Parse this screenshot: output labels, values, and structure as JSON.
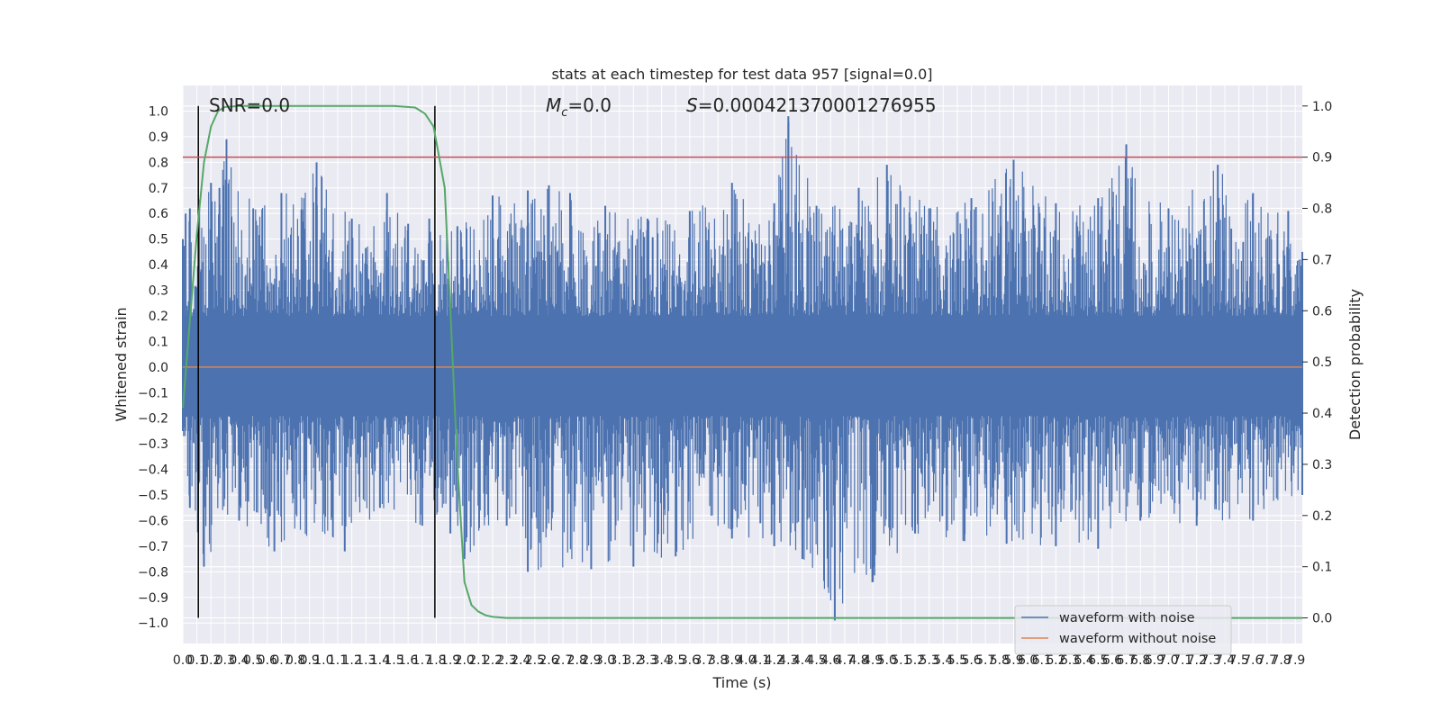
{
  "chart_data": {
    "type": "line",
    "title": "stats at each timestep for test data 957 [signal=0.0]",
    "xlabel": "Time (s)",
    "ylabel": "Whitened strain",
    "ylabel_right": "Detection probability",
    "xlim": [
      0.0,
      7.95
    ],
    "ylim": [
      -1.08,
      1.1
    ],
    "ylim_right": [
      -0.05,
      1.04
    ],
    "x_ticks": [
      "0.0",
      "0.1",
      "0.2",
      "0.3",
      "0.4",
      "0.5",
      "0.6",
      "0.7",
      "0.8",
      "0.9",
      "1.0",
      "1.1",
      "1.2",
      "1.3",
      "1.4",
      "1.5",
      "1.6",
      "1.7",
      "1.8",
      "1.9",
      "2.0",
      "2.1",
      "2.2",
      "2.3",
      "2.4",
      "2.5",
      "2.6",
      "2.7",
      "2.8",
      "2.9",
      "3.0",
      "3.1",
      "3.2",
      "3.3",
      "3.4",
      "3.5",
      "3.6",
      "3.7",
      "3.8",
      "3.9",
      "4.0",
      "4.1",
      "4.2",
      "4.3",
      "4.4",
      "4.5",
      "4.6",
      "4.7",
      "4.8",
      "4.9",
      "5.0",
      "5.1",
      "5.2",
      "5.3",
      "5.4",
      "5.5",
      "5.6",
      "5.7",
      "5.8",
      "5.9",
      "6.0",
      "6.1",
      "6.2",
      "6.3",
      "6.4",
      "6.5",
      "6.6",
      "6.7",
      "6.8",
      "6.9",
      "7.0",
      "7.1",
      "7.2",
      "7.3",
      "7.4",
      "7.5",
      "7.6",
      "7.7",
      "7.8",
      "7.9"
    ],
    "y_ticks_left": [
      "1.0",
      "0.9",
      "0.8",
      "0.7",
      "0.6",
      "0.5",
      "0.4",
      "0.3",
      "0.2",
      "0.1",
      "0.0",
      "−0.1",
      "−0.2",
      "−0.3",
      "−0.4",
      "−0.5",
      "−0.6",
      "−0.7",
      "−0.8",
      "−0.9",
      "−1.0"
    ],
    "y_ticks_right": [
      "1.0",
      "0.9",
      "0.8",
      "0.7",
      "0.6",
      "0.5",
      "0.4",
      "0.3",
      "0.2",
      "0.1",
      "0.0"
    ],
    "annotations": {
      "snr": "SNR=0.0",
      "mc_symbol": "M",
      "mc_sub": "c",
      "mc_value": "=0.0",
      "s_symbol": "S",
      "s_value": "=0.000421370001276955"
    },
    "vertical_lines_x": [
      0.11,
      1.79
    ],
    "threshold_right": 0.9,
    "series": [
      {
        "name": "waveform with noise",
        "color": "#4c72b0",
        "axis": "left",
        "envelope_upper": [
          [
            0.0,
            0.5
          ],
          [
            0.02,
            0.6
          ],
          [
            0.05,
            0.62
          ],
          [
            0.2,
            0.72
          ],
          [
            0.26,
            0.7
          ],
          [
            0.31,
            0.89
          ],
          [
            0.5,
            0.62
          ],
          [
            0.7,
            0.68
          ],
          [
            0.95,
            0.8
          ],
          [
            1.2,
            0.58
          ],
          [
            1.45,
            0.68
          ],
          [
            1.6,
            0.56
          ],
          [
            1.75,
            0.58
          ],
          [
            1.95,
            0.55
          ],
          [
            2.2,
            0.67
          ],
          [
            2.45,
            0.69
          ],
          [
            2.6,
            0.71
          ],
          [
            2.75,
            0.68
          ],
          [
            3.0,
            0.63
          ],
          [
            3.3,
            0.58
          ],
          [
            3.6,
            0.61
          ],
          [
            3.9,
            0.72
          ],
          [
            4.2,
            0.64
          ],
          [
            4.3,
            0.98
          ],
          [
            4.5,
            0.63
          ],
          [
            4.8,
            0.7
          ],
          [
            5.0,
            0.79
          ],
          [
            5.3,
            0.62
          ],
          [
            5.6,
            0.66
          ],
          [
            5.9,
            0.81
          ],
          [
            6.2,
            0.64
          ],
          [
            6.5,
            0.66
          ],
          [
            6.7,
            0.87
          ],
          [
            7.0,
            0.62
          ],
          [
            7.35,
            0.79
          ],
          [
            7.6,
            0.68
          ],
          [
            7.85,
            0.61
          ],
          [
            7.95,
            0.45
          ]
        ],
        "envelope_lower": [
          [
            0.0,
            -0.25
          ],
          [
            0.05,
            -0.55
          ],
          [
            0.15,
            -0.78
          ],
          [
            0.4,
            -0.6
          ],
          [
            0.65,
            -0.72
          ],
          [
            1.15,
            -0.72
          ],
          [
            1.4,
            -0.55
          ],
          [
            1.7,
            -0.62
          ],
          [
            1.9,
            -0.65
          ],
          [
            2.0,
            -0.75
          ],
          [
            2.3,
            -0.62
          ],
          [
            2.45,
            -0.8
          ],
          [
            2.9,
            -0.79
          ],
          [
            3.2,
            -0.78
          ],
          [
            3.5,
            -0.74
          ],
          [
            3.9,
            -0.67
          ],
          [
            4.2,
            -0.7
          ],
          [
            4.4,
            -0.75
          ],
          [
            4.63,
            -0.99
          ],
          [
            4.9,
            -0.84
          ],
          [
            5.2,
            -0.65
          ],
          [
            5.55,
            -0.68
          ],
          [
            5.85,
            -0.69
          ],
          [
            6.2,
            -0.7
          ],
          [
            6.5,
            -0.71
          ],
          [
            6.8,
            -0.6
          ],
          [
            7.2,
            -0.62
          ],
          [
            7.6,
            -0.6
          ],
          [
            7.95,
            -0.5
          ]
        ]
      },
      {
        "name": "waveform without noise",
        "color": "#dd8452",
        "axis": "left",
        "y": 0.0
      },
      {
        "name": "",
        "color": "#55a868",
        "axis": "right",
        "points": [
          [
            0.0,
            0.41
          ],
          [
            0.05,
            0.58
          ],
          [
            0.1,
            0.75
          ],
          [
            0.15,
            0.89
          ],
          [
            0.2,
            0.96
          ],
          [
            0.25,
            0.99
          ],
          [
            0.3,
            0.998
          ],
          [
            0.4,
            1.0
          ],
          [
            1.5,
            1.0
          ],
          [
            1.65,
            0.997
          ],
          [
            1.72,
            0.985
          ],
          [
            1.78,
            0.96
          ],
          [
            1.82,
            0.9
          ],
          [
            1.86,
            0.84
          ],
          [
            1.9,
            0.6
          ],
          [
            1.95,
            0.3
          ],
          [
            2.0,
            0.07
          ],
          [
            2.05,
            0.025
          ],
          [
            2.1,
            0.012
          ],
          [
            2.15,
            0.005
          ],
          [
            2.2,
            0.002
          ],
          [
            2.3,
            0.0
          ],
          [
            7.95,
            0.0
          ]
        ]
      }
    ],
    "legend": {
      "position": "lower right",
      "entries": [
        "waveform with noise",
        "waveform without noise"
      ]
    },
    "grid": true
  }
}
